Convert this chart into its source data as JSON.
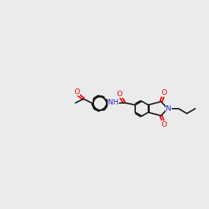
{
  "bg_color": "#ebebeb",
  "bond_color": "#1a1a1a",
  "oxygen_color": "#ee0000",
  "nitrogen_color": "#2020cc",
  "lw": 1.4,
  "figsize": [
    3.0,
    3.0
  ],
  "dpi": 100,
  "xlim": [
    0.0,
    10.0
  ],
  "ylim": [
    2.5,
    8.5
  ]
}
